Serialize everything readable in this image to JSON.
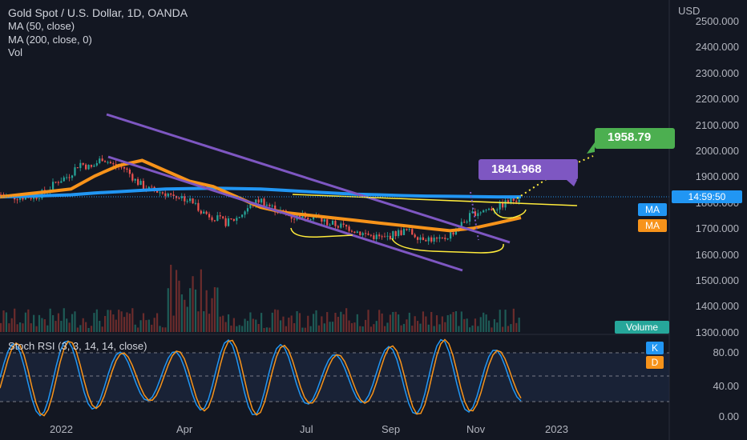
{
  "header": {
    "symbol": "Gold Spot / U.S. Dollar, 1D, OANDA",
    "ma50": "MA (50, close)",
    "ma200": "MA (200, close, 0)",
    "vol": "Vol"
  },
  "price_axis": {
    "currency": "USD",
    "ticks": [
      "2500.000",
      "2400.000",
      "2300.000",
      "2200.000",
      "2100.000",
      "2000.000",
      "1900.000",
      "1800.000",
      "1700.000",
      "1600.000",
      "1500.000",
      "1400.000",
      "1300.000"
    ],
    "last_time": "14:59:50",
    "ma_tag": "MA",
    "volume_tag": "Volume"
  },
  "annotations": {
    "box1": "1841.968",
    "box2": "1958.79"
  },
  "stoch": {
    "title": "Stoch RSI (3, 3, 14, 14, close)",
    "k": "K",
    "d": "D",
    "ticks": [
      "80.00",
      "40.00",
      "0.00"
    ]
  },
  "time_axis": [
    "2022",
    "Apr",
    "Jul",
    "Sep",
    "Nov",
    "2023"
  ],
  "colors": {
    "bg": "#131722",
    "up": "#26a69a",
    "down": "#ef5350",
    "ma50": "#f7931a",
    "ma200": "#2196f3",
    "channel": "#7e57c2",
    "yellow": "#ffeb3b",
    "green_box": "#4caf50",
    "purple_box": "#7e57c2"
  },
  "chart_data": {
    "type": "candlestick",
    "ylim": [
      1300,
      2500
    ],
    "series": [
      {
        "name": "MA (50, close)",
        "values": [
          1800,
          1810,
          1820,
          1830,
          1880,
          1920,
          1940,
          1900,
          1860,
          1840,
          1800,
          1760,
          1740,
          1730,
          1720,
          1710,
          1700,
          1690,
          1680,
          1670,
          1680,
          1700,
          1720
        ]
      },
      {
        "name": "MA (200, close, 0)",
        "values": [
          1800,
          1802,
          1805,
          1808,
          1815,
          1820,
          1825,
          1830,
          1832,
          1833,
          1832,
          1830,
          1825,
          1820,
          1815,
          1810,
          1808,
          1805,
          1803,
          1802,
          1801,
          1800,
          1800
        ]
      }
    ],
    "close": [
      1810,
      1800,
      1800,
      1800,
      1820,
      1860,
      1880,
      1930,
      1910,
      1950,
      1920,
      1910,
      1860,
      1830,
      1820,
      1810,
      1800,
      1780,
      1740,
      1720,
      1700,
      1720,
      1760,
      1790,
      1760,
      1740,
      1720,
      1730,
      1720,
      1700,
      1690,
      1680,
      1660,
      1650,
      1640,
      1660,
      1670,
      1650,
      1640,
      1630,
      1660,
      1700,
      1740,
      1750,
      1760,
      1780,
      1800
    ]
  }
}
